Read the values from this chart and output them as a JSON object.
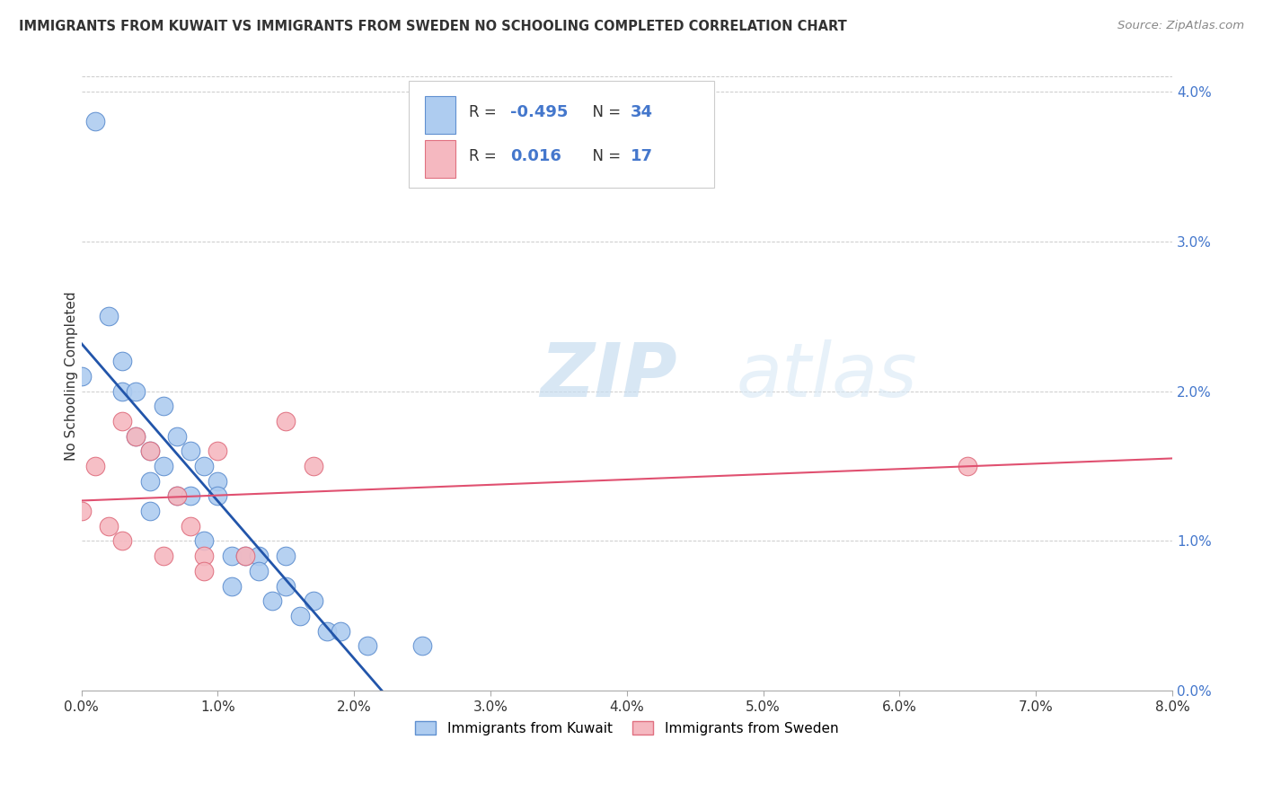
{
  "title": "IMMIGRANTS FROM KUWAIT VS IMMIGRANTS FROM SWEDEN NO SCHOOLING COMPLETED CORRELATION CHART",
  "source": "Source: ZipAtlas.com",
  "ylabel": "No Schooling Completed",
  "legend1_label": "Immigrants from Kuwait",
  "legend2_label": "Immigrants from Sweden",
  "r_kuwait": "-0.495",
  "n_kuwait": "34",
  "r_sweden": "0.016",
  "n_sweden": "17",
  "kuwait_color": "#aeccf0",
  "kuwait_edge_color": "#6090d0",
  "kuwait_line_color": "#2255aa",
  "sweden_color": "#f5b8c0",
  "sweden_edge_color": "#e07080",
  "sweden_line_color": "#e05070",
  "watermark_zip": "ZIP",
  "watermark_atlas": "atlas",
  "kuwait_x": [
    0.0,
    0.001,
    0.002,
    0.003,
    0.003,
    0.004,
    0.004,
    0.005,
    0.005,
    0.005,
    0.006,
    0.006,
    0.007,
    0.007,
    0.008,
    0.008,
    0.009,
    0.009,
    0.01,
    0.01,
    0.011,
    0.011,
    0.012,
    0.013,
    0.013,
    0.014,
    0.015,
    0.015,
    0.016,
    0.017,
    0.018,
    0.019,
    0.021,
    0.025
  ],
  "kuwait_y": [
    0.021,
    0.038,
    0.025,
    0.022,
    0.02,
    0.02,
    0.017,
    0.016,
    0.014,
    0.012,
    0.019,
    0.015,
    0.017,
    0.013,
    0.016,
    0.013,
    0.015,
    0.01,
    0.014,
    0.013,
    0.009,
    0.007,
    0.009,
    0.009,
    0.008,
    0.006,
    0.009,
    0.007,
    0.005,
    0.006,
    0.004,
    0.004,
    0.003,
    0.003
  ],
  "sweden_x": [
    0.0,
    0.001,
    0.002,
    0.003,
    0.003,
    0.004,
    0.005,
    0.006,
    0.007,
    0.008,
    0.009,
    0.009,
    0.01,
    0.012,
    0.015,
    0.017,
    0.065
  ],
  "sweden_y": [
    0.012,
    0.015,
    0.011,
    0.018,
    0.01,
    0.017,
    0.016,
    0.009,
    0.013,
    0.011,
    0.009,
    0.008,
    0.016,
    0.009,
    0.018,
    0.015,
    0.015
  ],
  "xlim": [
    0.0,
    0.08
  ],
  "ylim": [
    0.0,
    0.042
  ],
  "background_color": "#ffffff",
  "grid_color": "#cccccc",
  "text_color": "#4477cc",
  "legend_text_color": "#333333"
}
